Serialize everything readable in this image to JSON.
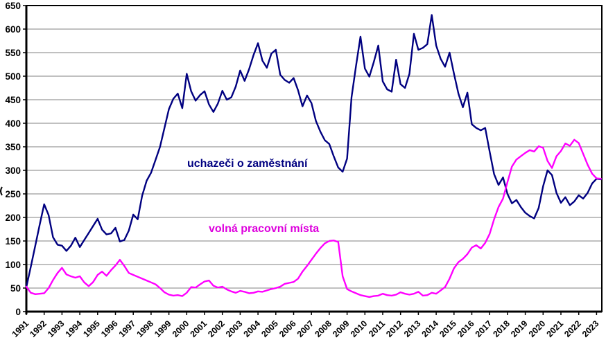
{
  "chart_data": {
    "type": "line",
    "title": "",
    "xlabel": "",
    "ylabel": "",
    "ylim": [
      0,
      650
    ],
    "y_tick_step": 50,
    "y_tick_labels": [
      "0",
      "50",
      "100",
      "150",
      "200",
      "250",
      "300",
      "350",
      "400",
      "450",
      "500",
      "550",
      "600",
      "650"
    ],
    "x_start": 1991.0,
    "x_step": 0.25,
    "x_tick_labels": [
      "1991",
      "1992",
      "1993",
      "1994",
      "1995",
      "1996",
      "1997",
      "1998",
      "1999",
      "2000",
      "2001",
      "2002",
      "2003",
      "2004",
      "2005",
      "2006",
      "2007",
      "2008",
      "2009",
      "2010",
      "2011",
      "2012",
      "2013",
      "2014",
      "2015",
      "2016",
      "2017",
      "2018",
      "2019",
      "2020",
      "2021",
      "2022",
      "2023"
    ],
    "grid": true,
    "legend_position": "inline-labels",
    "series": [
      {
        "name": "uchazeči o zaměstnání",
        "color": "#000080",
        "label_color": "#000080",
        "values": [
          52,
          95,
          140,
          185,
          228,
          205,
          158,
          142,
          140,
          129,
          140,
          157,
          137,
          152,
          167,
          182,
          197,
          174,
          164,
          166,
          178,
          149,
          152,
          172,
          206,
          196,
          246,
          278,
          295,
          322,
          350,
          390,
          430,
          452,
          463,
          432,
          505,
          468,
          448,
          460,
          468,
          440,
          424,
          442,
          469,
          450,
          455,
          478,
          512,
          490,
          515,
          545,
          570,
          533,
          518,
          548,
          556,
          503,
          492,
          486,
          496,
          470,
          436,
          459,
          443,
          405,
          382,
          364,
          356,
          330,
          306,
          297,
          325,
          455,
          522,
          584,
          516,
          499,
          530,
          565,
          489,
          472,
          467,
          535,
          483,
          475,
          505,
          590,
          556,
          560,
          568,
          630,
          565,
          537,
          520,
          550,
          505,
          463,
          434,
          465,
          398,
          390,
          385,
          390,
          340,
          292,
          269,
          285,
          250,
          230,
          237,
          222,
          210,
          203,
          198,
          220,
          266,
          300,
          290,
          252,
          231,
          243,
          226,
          234,
          247,
          240,
          252,
          272,
          282,
          281
        ]
      },
      {
        "name": "volná pracovní místa",
        "color": "#FF00FF",
        "label_color": "#DD00DD",
        "values": [
          53,
          40,
          37,
          38,
          39,
          50,
          67,
          82,
          93,
          79,
          75,
          72,
          75,
          62,
          54,
          63,
          78,
          85,
          76,
          88,
          98,
          110,
          97,
          82,
          78,
          74,
          70,
          66,
          62,
          58,
          50,
          41,
          36,
          34,
          35,
          33,
          40,
          52,
          51,
          58,
          64,
          66,
          55,
          51,
          53,
          47,
          43,
          40,
          44,
          42,
          39,
          40,
          43,
          42,
          45,
          48,
          50,
          53,
          59,
          61,
          63,
          70,
          85,
          97,
          110,
          123,
          135,
          145,
          150,
          151,
          148,
          75,
          48,
          43,
          39,
          35,
          33,
          31,
          33,
          34,
          38,
          35,
          34,
          36,
          41,
          38,
          36,
          38,
          42,
          34,
          35,
          40,
          38,
          45,
          52,
          70,
          92,
          105,
          112,
          122,
          136,
          141,
          134,
          146,
          165,
          196,
          222,
          240,
          275,
          308,
          323,
          330,
          337,
          343,
          340,
          351,
          348,
          320,
          305,
          330,
          341,
          357,
          352,
          365,
          358,
          335,
          312,
          293,
          283,
          282
        ]
      }
    ],
    "style": {
      "grid_color": "#808080",
      "axis_color": "#000000",
      "background": "#ffffff",
      "tick_label_color": "#000000"
    }
  }
}
